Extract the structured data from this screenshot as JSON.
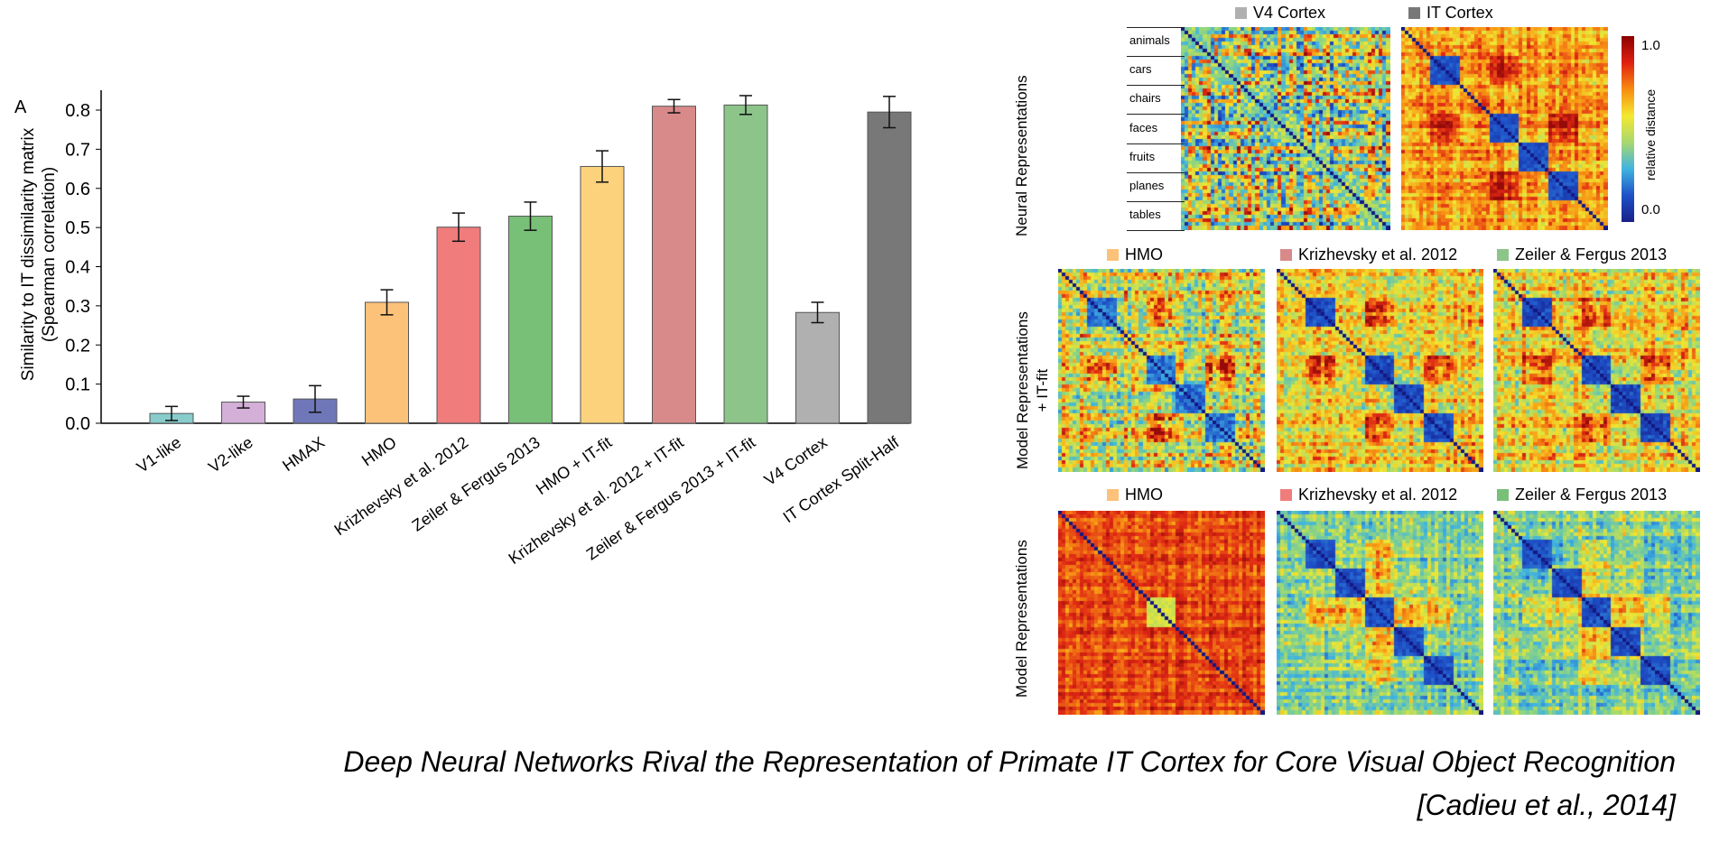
{
  "panel_letter": "A",
  "chart_data": {
    "type": "bar",
    "ylabel_line1": "Similarity to IT dissimilarity matrix",
    "ylabel_line2": "(Spearman correlation)",
    "ylim": [
      0,
      0.85
    ],
    "yticks": [
      "0.0",
      "0.1",
      "0.2",
      "0.3",
      "0.4",
      "0.5",
      "0.6",
      "0.7",
      "0.8"
    ],
    "categories": [
      "V1-like",
      "V2-like",
      "HMAX",
      "HMO",
      "Krizhevsky et al. 2012",
      "Zeiler & Fergus 2013",
      "HMO + IT-fit",
      "Krizhevsky et al. 2012 + IT-fit",
      "Zeiler & Fergus 2013 + IT-fit",
      "V4 Cortex",
      "IT Cortex Split-Half"
    ],
    "values": [
      0.025,
      0.054,
      0.062,
      0.309,
      0.501,
      0.529,
      0.656,
      0.81,
      0.813,
      0.283,
      0.795
    ],
    "errors": [
      0.018,
      0.015,
      0.034,
      0.032,
      0.036,
      0.036,
      0.04,
      0.017,
      0.024,
      0.026,
      0.04
    ],
    "colors": [
      "#88cccc",
      "#d4b0d8",
      "#7077b8",
      "#fcc27a",
      "#f07c7c",
      "#78c078",
      "#fdd27c",
      "#d88a8a",
      "#8cc48a",
      "#b0b0b0",
      "#787878"
    ]
  },
  "heatmaps": {
    "row_neural": "Neural Representations",
    "row_itfit_line1": "Model Representations",
    "row_itfit_line2": "+ IT-fit",
    "row_model": "Model Representations",
    "categories": [
      "animals",
      "cars",
      "chairs",
      "faces",
      "fruits",
      "planes",
      "tables"
    ],
    "colorbar_label": "relative distance",
    "colorbar_max": "1.0",
    "colorbar_min": "0.0",
    "panels": [
      {
        "title": "V4 Cortex",
        "swatch": "#b0b0b0"
      },
      {
        "title": "IT Cortex",
        "swatch": "#787878"
      },
      {
        "title": "HMO",
        "swatch": "#fcc27a"
      },
      {
        "title": "Krizhevsky et al. 2012",
        "swatch": "#d88a8a"
      },
      {
        "title": "Zeiler & Fergus 2013",
        "swatch": "#8cc48a"
      },
      {
        "title": "HMO",
        "swatch": "#fcc27a"
      },
      {
        "title": "Krizhevsky et al. 2012",
        "swatch": "#f07c7c"
      },
      {
        "title": "Zeiler & Fergus 2013",
        "swatch": "#78c078"
      }
    ]
  },
  "caption": {
    "line1": "Deep Neural Networks Rival the Representation of Primate IT Cortex for Core Visual Object Recognition",
    "line2": "[Cadieu et al., 2014]"
  }
}
